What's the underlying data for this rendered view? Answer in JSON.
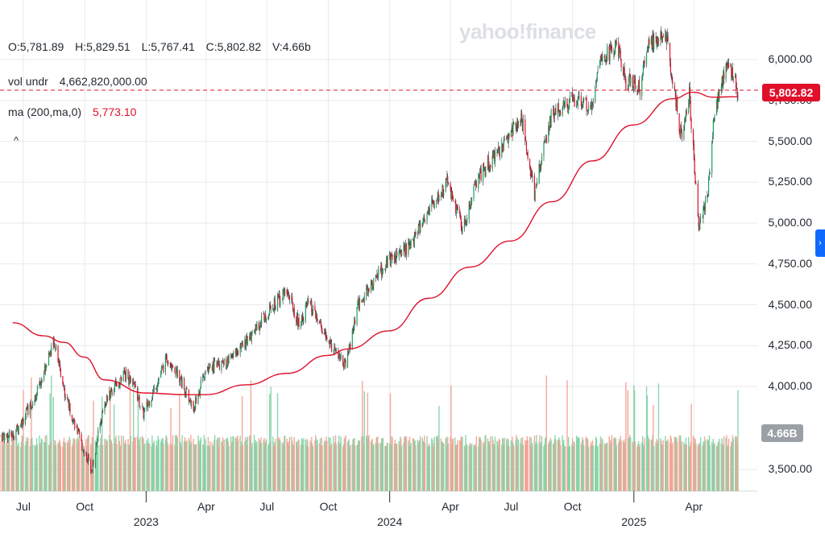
{
  "watermark": "yahoo!finance",
  "ohlcv": {
    "open": "O:5,781.89",
    "high": "H:5,829.51",
    "low": "L:5,767.41",
    "close": "C:5,802.82",
    "volume": "V:4.66b"
  },
  "volume_study": {
    "label": "vol undr",
    "value": "4,662,820,000.00"
  },
  "ma_study": {
    "label": "ma (200,ma,0)",
    "value": "5,773.10"
  },
  "collapse_icon": "^",
  "last_price": "5,802.82",
  "last_volume": "4.66B",
  "chart_data": {
    "type": "candlestick",
    "y_axis": {
      "ticks": [
        "6,000.00",
        "5,750.00",
        "5,500.00",
        "5,250.00",
        "5,000.00",
        "4,750.00",
        "4,500.00",
        "4,250.00",
        "4,000.00",
        "3,500.00"
      ],
      "range": [
        3500,
        6200
      ]
    },
    "x_axis": {
      "month_ticks": [
        "Jul",
        "Oct",
        "Apr",
        "Jul",
        "Oct",
        "Apr",
        "Jul",
        "Oct",
        "Apr"
      ],
      "year_ticks": [
        "2023",
        "2024",
        "2025"
      ]
    },
    "close_path": [
      [
        "2022-06-15",
        3700
      ],
      [
        "2022-07-01",
        3800
      ],
      [
        "2022-07-20",
        3950
      ],
      [
        "2022-08-16",
        4280
      ],
      [
        "2022-09-01",
        3960
      ],
      [
        "2022-09-30",
        3600
      ],
      [
        "2022-10-12",
        3500
      ],
      [
        "2022-10-30",
        3900
      ],
      [
        "2022-11-30",
        4080
      ],
      [
        "2022-12-15",
        3990
      ],
      [
        "2022-12-28",
        3830
      ],
      [
        "2023-01-15",
        4000
      ],
      [
        "2023-02-02",
        4180
      ],
      [
        "2023-02-20",
        4060
      ],
      [
        "2023-03-13",
        3860
      ],
      [
        "2023-04-01",
        4110
      ],
      [
        "2023-05-01",
        4140
      ],
      [
        "2023-06-01",
        4280
      ],
      [
        "2023-06-30",
        4450
      ],
      [
        "2023-07-31",
        4590
      ],
      [
        "2023-08-18",
        4380
      ],
      [
        "2023-09-01",
        4510
      ],
      [
        "2023-09-29",
        4290
      ],
      [
        "2023-10-27",
        4120
      ],
      [
        "2023-11-15",
        4500
      ],
      [
        "2023-12-29",
        4770
      ],
      [
        "2024-01-31",
        4850
      ],
      [
        "2024-02-29",
        5090
      ],
      [
        "2024-03-28",
        5250
      ],
      [
        "2024-04-19",
        4970
      ],
      [
        "2024-05-15",
        5300
      ],
      [
        "2024-06-15",
        5450
      ],
      [
        "2024-07-16",
        5660
      ],
      [
        "2024-08-05",
        5190
      ],
      [
        "2024-08-30",
        5650
      ],
      [
        "2024-09-30",
        5750
      ],
      [
        "2024-10-31",
        5720
      ],
      [
        "2024-11-11",
        6000
      ],
      [
        "2024-12-06",
        6090
      ],
      [
        "2024-12-20",
        5870
      ],
      [
        "2025-01-10",
        5830
      ],
      [
        "2025-01-23",
        6100
      ],
      [
        "2025-02-19",
        6140
      ],
      [
        "2025-03-13",
        5520
      ],
      [
        "2025-03-25",
        5780
      ],
      [
        "2025-04-08",
        4980
      ],
      [
        "2025-04-21",
        5150
      ],
      [
        "2025-05-02",
        5690
      ],
      [
        "2025-05-19",
        5960
      ],
      [
        "2025-05-30",
        5910
      ],
      [
        "2025-06-06",
        5803
      ]
    ],
    "ma200_path": [
      [
        "2022-06-15",
        4390
      ],
      [
        "2022-07-31",
        4310
      ],
      [
        "2022-08-31",
        4270
      ],
      [
        "2022-09-30",
        4180
      ],
      [
        "2022-10-31",
        4040
      ],
      [
        "2022-12-31",
        3960
      ],
      [
        "2023-02-28",
        3950
      ],
      [
        "2023-03-31",
        3950
      ],
      [
        "2023-05-31",
        4010
      ],
      [
        "2023-07-31",
        4080
      ],
      [
        "2023-09-30",
        4190
      ],
      [
        "2023-10-31",
        4230
      ],
      [
        "2023-12-31",
        4340
      ],
      [
        "2024-02-29",
        4540
      ],
      [
        "2024-04-30",
        4730
      ],
      [
        "2024-06-30",
        4890
      ],
      [
        "2024-08-31",
        5130
      ],
      [
        "2024-10-31",
        5380
      ],
      [
        "2024-12-31",
        5600
      ],
      [
        "2025-02-28",
        5760
      ],
      [
        "2025-03-31",
        5800
      ],
      [
        "2025-04-30",
        5770
      ],
      [
        "2025-06-06",
        5773
      ]
    ]
  }
}
